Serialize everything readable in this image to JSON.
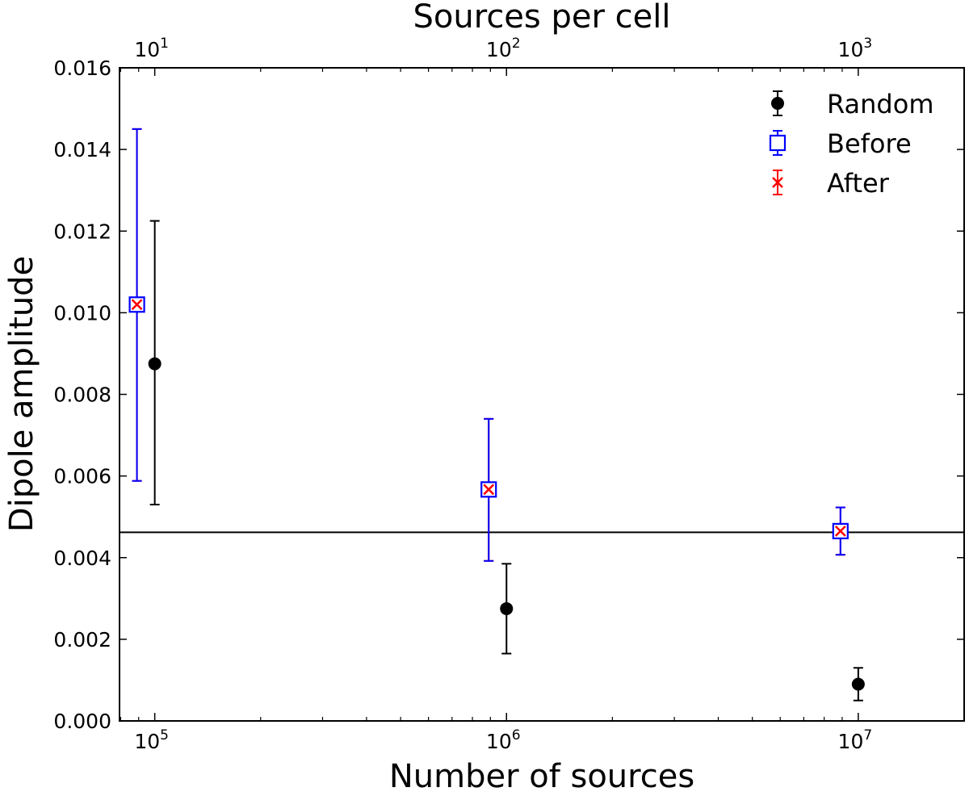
{
  "chart_data": {
    "type": "scatter",
    "xlabel": "Number of sources",
    "x2label": "Sources per cell",
    "ylabel": "Dipole amplitude",
    "xscale": "log",
    "xlim": [
      79400,
      20000000
    ],
    "ylim": [
      0.0,
      0.016
    ],
    "grid": false,
    "legend_position": "top-right",
    "yticks": [
      0.0,
      0.002,
      0.004,
      0.006,
      0.008,
      0.01,
      0.012,
      0.014,
      0.016
    ],
    "ytick_labels": [
      "0.000",
      "0.002",
      "0.004",
      "0.006",
      "0.008",
      "0.010",
      "0.012",
      "0.014",
      "0.016"
    ],
    "xticks": [
      {
        "value": 100000,
        "base": "10",
        "exp": "5"
      },
      {
        "value": 1000000,
        "base": "10",
        "exp": "6"
      },
      {
        "value": 10000000,
        "base": "10",
        "exp": "7"
      }
    ],
    "x2_ratio": 10000,
    "x2ticks": [
      {
        "value": 10,
        "base": "10",
        "exp": "1"
      },
      {
        "value": 100,
        "base": "10",
        "exp": "2"
      },
      {
        "value": 1000,
        "base": "10",
        "exp": "3"
      }
    ],
    "hline": 0.00462,
    "series": [
      {
        "name": "Random",
        "color": "#000000",
        "marker": "circle",
        "points": [
          {
            "x": 100000,
            "y": 0.00875,
            "err_low": 0.0053,
            "err_high": 0.01225
          },
          {
            "x": 1000000,
            "y": 0.00275,
            "err_low": 0.00165,
            "err_high": 0.00385
          },
          {
            "x": 10000000,
            "y": 0.0009,
            "err_low": 0.0005,
            "err_high": 0.0013
          }
        ]
      },
      {
        "name": "Before",
        "color": "#0000ff",
        "marker": "square",
        "points": [
          {
            "x": 89000,
            "y": 0.0102,
            "err_low": 0.00588,
            "err_high": 0.0145
          },
          {
            "x": 890000,
            "y": 0.00567,
            "err_low": 0.00392,
            "err_high": 0.0074
          },
          {
            "x": 8900000,
            "y": 0.00465,
            "err_low": 0.00407,
            "err_high": 0.00523
          }
        ]
      },
      {
        "name": "After",
        "color": "#ff0000",
        "marker": "x",
        "points": [
          {
            "x": 89000,
            "y": 0.0102,
            "err_low": 0.00588,
            "err_high": 0.0145
          },
          {
            "x": 890000,
            "y": 0.00567,
            "err_low": 0.00392,
            "err_high": 0.0074
          },
          {
            "x": 8900000,
            "y": 0.00465,
            "err_low": 0.00407,
            "err_high": 0.00523
          }
        ]
      }
    ]
  }
}
